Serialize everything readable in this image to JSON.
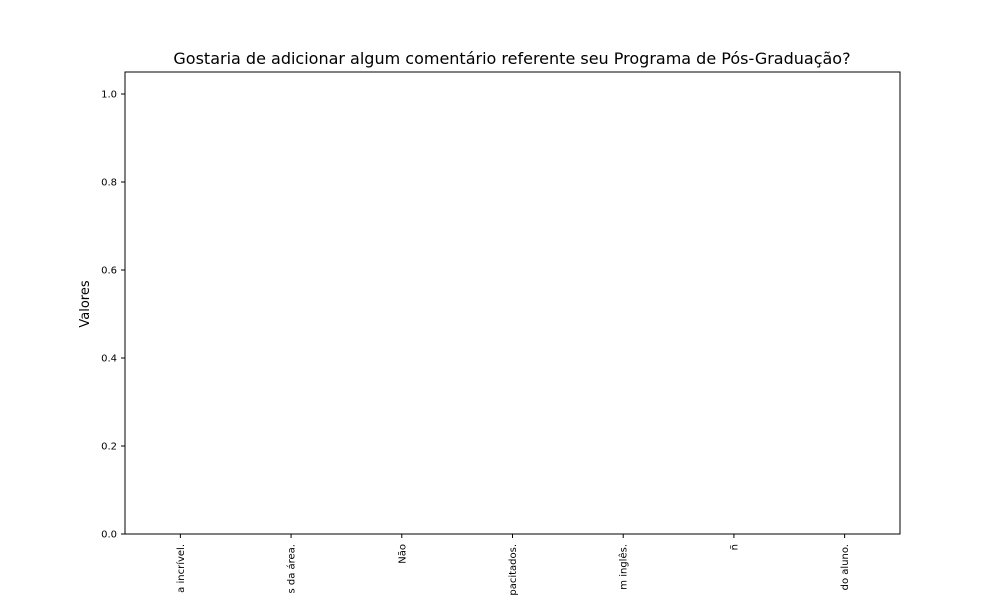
{
  "chart_data": {
    "type": "bar",
    "title": "Gostaria de adicionar algum comentário referente seu Programa de Pós-Graduação?",
    "xlabel": "",
    "ylabel": "Valores",
    "categories": [
      "a incrível.",
      "s da área.",
      "Não",
      "pacitados.",
      "m inglês.",
      "ñ",
      "do aluno."
    ],
    "values": [
      0,
      0,
      0,
      0,
      0,
      0,
      0
    ],
    "ylim": [
      0,
      1.05
    ],
    "yticks": [
      "0.0",
      "0.2",
      "0.4",
      "0.6",
      "0.8",
      "1.0"
    ],
    "ytick_values": [
      0,
      0.2,
      0.4,
      0.6,
      0.8,
      1.0
    ],
    "bar_color": "#1f77b4",
    "grid": false,
    "legend": "none"
  }
}
